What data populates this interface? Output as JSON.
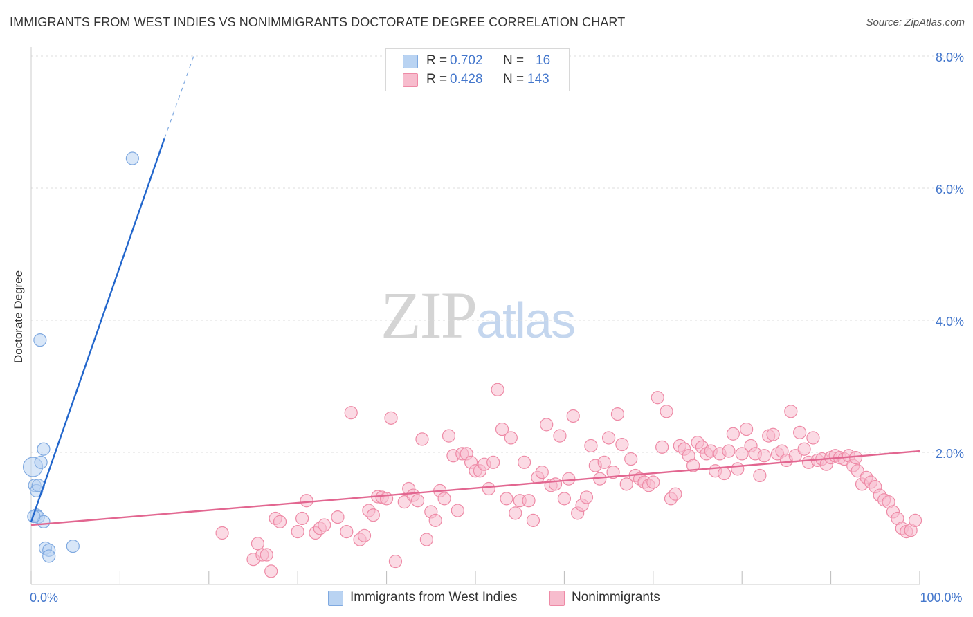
{
  "header": {
    "title": "IMMIGRANTS FROM WEST INDIES VS NONIMMIGRANTS DOCTORATE DEGREE CORRELATION CHART",
    "source": "Source: ZipAtlas.com"
  },
  "watermark": {
    "zip": "ZIP",
    "atlas": "atlas"
  },
  "legend": {
    "rows": [
      {
        "r_label": "R =",
        "r_value": "0.702",
        "n_label": "N =",
        "n_value": "16",
        "color": "#b9d3f2"
      },
      {
        "r_label": "R =",
        "r_value": "0.428",
        "n_label": "N =",
        "n_value": "143",
        "color": "#f7bccd"
      }
    ]
  },
  "bottom_legend": {
    "items": [
      {
        "label": "Immigrants from West Indies",
        "color": "#b9d3f2"
      },
      {
        "label": "Nonimmigrants",
        "color": "#f7bccd"
      }
    ]
  },
  "chart_data": {
    "type": "scatter",
    "title": "IMMIGRANTS FROM WEST INDIES VS NONIMMIGRANTS DOCTORATE DEGREE CORRELATION CHART",
    "xlabel": "",
    "ylabel": "Doctorate Degree",
    "xlim": [
      0,
      100
    ],
    "ylim": [
      0,
      8.2
    ],
    "x_tick_labels": [
      {
        "value": 0,
        "label": "0.0%"
      },
      {
        "value": 100,
        "label": "100.0%"
      }
    ],
    "y_ticks": [
      {
        "value": 2,
        "label": "2.0%"
      },
      {
        "value": 4,
        "label": "4.0%"
      },
      {
        "value": 6,
        "label": "6.0%"
      },
      {
        "value": 8,
        "label": "8.0%"
      }
    ],
    "x_minor_ticks": [
      0,
      10,
      20,
      30,
      40,
      50,
      60,
      70,
      80,
      90,
      100
    ],
    "grid": true,
    "series": [
      {
        "name": "Immigrants from West Indies",
        "color": "#7fa9e0",
        "fill": "#b9d3f2",
        "trend": {
          "x0": 0,
          "y0": 0.95,
          "x1": 15,
          "y1": 6.75,
          "dash_x1": 18.3,
          "dash_y1": 8.0,
          "color": "#2266cc"
        },
        "points": [
          {
            "x": 0.2,
            "y": 1.78,
            "size": 14
          },
          {
            "x": 0.4,
            "y": 1.5
          },
          {
            "x": 0.6,
            "y": 1.42
          },
          {
            "x": 0.6,
            "y": 1.05
          },
          {
            "x": 0.8,
            "y": 1.02
          },
          {
            "x": 1.0,
            "y": 3.7
          },
          {
            "x": 1.1,
            "y": 1.85
          },
          {
            "x": 1.4,
            "y": 2.05
          },
          {
            "x": 1.4,
            "y": 0.95
          },
          {
            "x": 1.6,
            "y": 0.55
          },
          {
            "x": 2.0,
            "y": 0.52
          },
          {
            "x": 2.0,
            "y": 0.43
          },
          {
            "x": 4.7,
            "y": 0.58
          },
          {
            "x": 11.4,
            "y": 6.45
          },
          {
            "x": 0.3,
            "y": 1.03
          },
          {
            "x": 0.8,
            "y": 1.5
          }
        ]
      },
      {
        "name": "Nonimmigrants",
        "color": "#ee8aa6",
        "fill": "#f7bccd",
        "trend": {
          "x0": 0,
          "y0": 0.9,
          "x1": 100,
          "y1": 2.02,
          "color": "#e26690"
        },
        "points": [
          {
            "x": 21.5,
            "y": 0.78
          },
          {
            "x": 25.0,
            "y": 0.38
          },
          {
            "x": 25.5,
            "y": 0.62
          },
          {
            "x": 26.0,
            "y": 0.45
          },
          {
            "x": 26.5,
            "y": 0.45
          },
          {
            "x": 27.0,
            "y": 0.2
          },
          {
            "x": 27.5,
            "y": 1.0
          },
          {
            "x": 28.0,
            "y": 0.95
          },
          {
            "x": 30.0,
            "y": 0.8
          },
          {
            "x": 30.5,
            "y": 1.0
          },
          {
            "x": 31.0,
            "y": 1.27
          },
          {
            "x": 32.0,
            "y": 0.78
          },
          {
            "x": 32.5,
            "y": 0.85
          },
          {
            "x": 33.0,
            "y": 0.9
          },
          {
            "x": 34.5,
            "y": 1.02
          },
          {
            "x": 35.5,
            "y": 0.8
          },
          {
            "x": 36.0,
            "y": 2.6
          },
          {
            "x": 37.0,
            "y": 0.68
          },
          {
            "x": 37.5,
            "y": 0.74
          },
          {
            "x": 38.0,
            "y": 1.12
          },
          {
            "x": 38.5,
            "y": 1.05
          },
          {
            "x": 39.0,
            "y": 1.33
          },
          {
            "x": 39.5,
            "y": 1.32
          },
          {
            "x": 40.0,
            "y": 1.3
          },
          {
            "x": 40.5,
            "y": 2.52
          },
          {
            "x": 41.0,
            "y": 0.35
          },
          {
            "x": 42.0,
            "y": 1.25
          },
          {
            "x": 42.5,
            "y": 1.45
          },
          {
            "x": 43.0,
            "y": 1.35
          },
          {
            "x": 43.5,
            "y": 1.27
          },
          {
            "x": 44.0,
            "y": 2.2
          },
          {
            "x": 44.5,
            "y": 0.68
          },
          {
            "x": 45.0,
            "y": 1.1
          },
          {
            "x": 45.5,
            "y": 0.97
          },
          {
            "x": 46.0,
            "y": 1.42
          },
          {
            "x": 46.5,
            "y": 1.3
          },
          {
            "x": 47.0,
            "y": 2.25
          },
          {
            "x": 47.5,
            "y": 1.95
          },
          {
            "x": 48.0,
            "y": 1.12
          },
          {
            "x": 48.5,
            "y": 1.98
          },
          {
            "x": 49.0,
            "y": 1.98
          },
          {
            "x": 49.5,
            "y": 1.85
          },
          {
            "x": 50.0,
            "y": 1.72
          },
          {
            "x": 50.5,
            "y": 1.72
          },
          {
            "x": 51.0,
            "y": 1.82
          },
          {
            "x": 51.5,
            "y": 1.45
          },
          {
            "x": 52.0,
            "y": 1.85
          },
          {
            "x": 52.5,
            "y": 2.95
          },
          {
            "x": 53.0,
            "y": 2.35
          },
          {
            "x": 53.5,
            "y": 1.3
          },
          {
            "x": 54.0,
            "y": 2.22
          },
          {
            "x": 54.5,
            "y": 1.08
          },
          {
            "x": 55.0,
            "y": 1.27
          },
          {
            "x": 55.5,
            "y": 1.85
          },
          {
            "x": 56.0,
            "y": 1.27
          },
          {
            "x": 56.5,
            "y": 0.97
          },
          {
            "x": 57.0,
            "y": 1.62
          },
          {
            "x": 57.5,
            "y": 1.7
          },
          {
            "x": 58.0,
            "y": 2.42
          },
          {
            "x": 58.5,
            "y": 1.5
          },
          {
            "x": 59.0,
            "y": 1.52
          },
          {
            "x": 59.5,
            "y": 2.25
          },
          {
            "x": 60.0,
            "y": 1.3
          },
          {
            "x": 60.5,
            "y": 1.6
          },
          {
            "x": 61.0,
            "y": 2.55
          },
          {
            "x": 61.5,
            "y": 1.08
          },
          {
            "x": 62.0,
            "y": 1.2
          },
          {
            "x": 62.5,
            "y": 1.32
          },
          {
            "x": 63.0,
            "y": 2.1
          },
          {
            "x": 63.5,
            "y": 1.8
          },
          {
            "x": 64.0,
            "y": 1.6
          },
          {
            "x": 64.5,
            "y": 1.85
          },
          {
            "x": 65.0,
            "y": 2.22
          },
          {
            "x": 65.5,
            "y": 1.7
          },
          {
            "x": 66.0,
            "y": 2.58
          },
          {
            "x": 66.5,
            "y": 2.12
          },
          {
            "x": 67.0,
            "y": 1.52
          },
          {
            "x": 67.5,
            "y": 1.9
          },
          {
            "x": 68.0,
            "y": 1.65
          },
          {
            "x": 68.5,
            "y": 1.6
          },
          {
            "x": 69.0,
            "y": 1.55
          },
          {
            "x": 69.5,
            "y": 1.5
          },
          {
            "x": 70.0,
            "y": 1.55
          },
          {
            "x": 70.5,
            "y": 2.83
          },
          {
            "x": 71.0,
            "y": 2.08
          },
          {
            "x": 71.5,
            "y": 2.62
          },
          {
            "x": 72.0,
            "y": 1.3
          },
          {
            "x": 72.5,
            "y": 1.37
          },
          {
            "x": 73.0,
            "y": 2.1
          },
          {
            "x": 73.5,
            "y": 2.05
          },
          {
            "x": 74.0,
            "y": 1.95
          },
          {
            "x": 74.5,
            "y": 1.8
          },
          {
            "x": 75.0,
            "y": 2.15
          },
          {
            "x": 75.5,
            "y": 2.08
          },
          {
            "x": 76.0,
            "y": 1.98
          },
          {
            "x": 76.5,
            "y": 2.02
          },
          {
            "x": 77.0,
            "y": 1.72
          },
          {
            "x": 77.5,
            "y": 1.98
          },
          {
            "x": 78.0,
            "y": 1.68
          },
          {
            "x": 78.5,
            "y": 2.02
          },
          {
            "x": 79.0,
            "y": 2.28
          },
          {
            "x": 79.5,
            "y": 1.75
          },
          {
            "x": 80.0,
            "y": 1.98
          },
          {
            "x": 80.5,
            "y": 2.35
          },
          {
            "x": 81.0,
            "y": 2.1
          },
          {
            "x": 81.5,
            "y": 1.98
          },
          {
            "x": 82.0,
            "y": 1.65
          },
          {
            "x": 82.5,
            "y": 1.95
          },
          {
            "x": 83.0,
            "y": 2.25
          },
          {
            "x": 83.5,
            "y": 2.27
          },
          {
            "x": 84.0,
            "y": 1.98
          },
          {
            "x": 84.5,
            "y": 2.02
          },
          {
            "x": 85.0,
            "y": 1.88
          },
          {
            "x": 85.5,
            "y": 2.62
          },
          {
            "x": 86.0,
            "y": 1.95
          },
          {
            "x": 86.5,
            "y": 2.3
          },
          {
            "x": 87.0,
            "y": 2.05
          },
          {
            "x": 87.5,
            "y": 1.85
          },
          {
            "x": 88.0,
            "y": 2.22
          },
          {
            "x": 88.5,
            "y": 1.88
          },
          {
            "x": 89.0,
            "y": 1.9
          },
          {
            "x": 89.5,
            "y": 1.82
          },
          {
            "x": 90.0,
            "y": 1.92
          },
          {
            "x": 90.5,
            "y": 1.95
          },
          {
            "x": 91.0,
            "y": 1.92
          },
          {
            "x": 91.5,
            "y": 1.9
          },
          {
            "x": 92.0,
            "y": 1.95
          },
          {
            "x": 92.5,
            "y": 1.8
          },
          {
            "x": 93.0,
            "y": 1.72
          },
          {
            "x": 93.5,
            "y": 1.52
          },
          {
            "x": 94.0,
            "y": 1.62
          },
          {
            "x": 94.5,
            "y": 1.55
          },
          {
            "x": 95.0,
            "y": 1.48
          },
          {
            "x": 95.5,
            "y": 1.35
          },
          {
            "x": 96.0,
            "y": 1.28
          },
          {
            "x": 96.5,
            "y": 1.25
          },
          {
            "x": 97.0,
            "y": 1.1
          },
          {
            "x": 97.5,
            "y": 1.0
          },
          {
            "x": 98.0,
            "y": 0.85
          },
          {
            "x": 98.5,
            "y": 0.8
          },
          {
            "x": 99.0,
            "y": 0.82
          },
          {
            "x": 99.5,
            "y": 0.97
          },
          {
            "x": 92.8,
            "y": 1.92
          }
        ]
      }
    ]
  }
}
